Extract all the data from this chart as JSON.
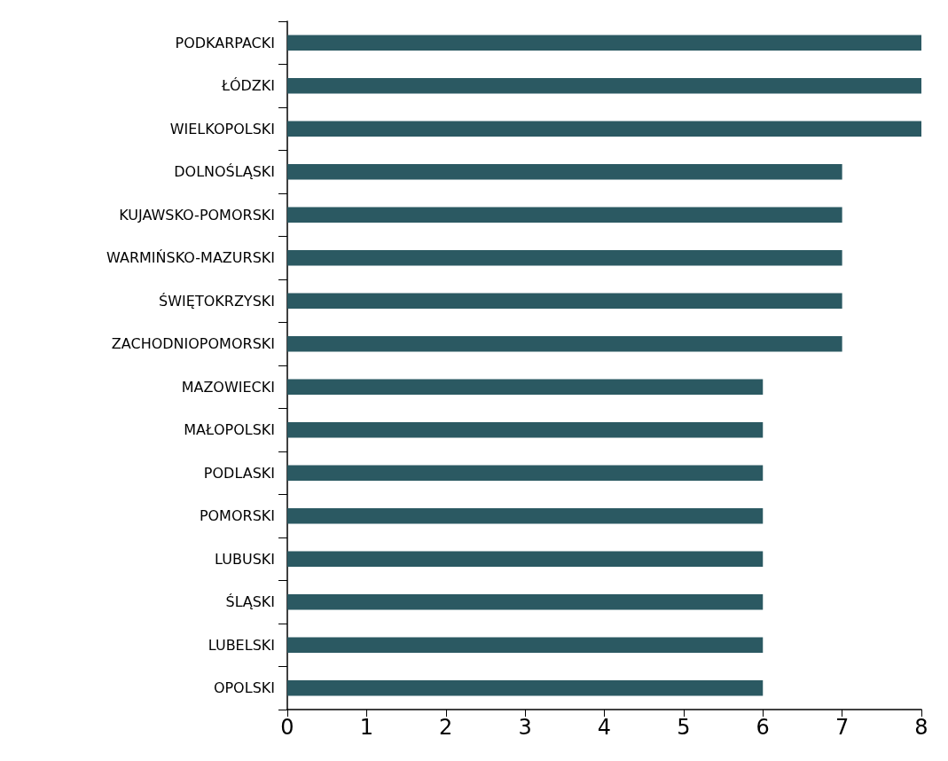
{
  "chart_data": {
    "type": "bar",
    "orientation": "horizontal",
    "categories": [
      "PODKARPACKI",
      "ŁÓDZKI",
      "WIELKOPOLSKI",
      "DOLNOŚLĄSKI",
      "KUJAWSKO-POMORSKI",
      "WARMIŃSKO-MAZURSKI",
      "ŚWIĘTOKRZYSKI",
      "ZACHODNIOPOMORSKI",
      "MAZOWIECKI",
      "MAŁOPOLSKI",
      "PODLASKI",
      "POMORSKI",
      "LUBUSKI",
      "ŚLĄSKI",
      "LUBELSKI",
      "OPOLSKI"
    ],
    "values": [
      8,
      8,
      8,
      7,
      7,
      7,
      7,
      7,
      6,
      6,
      6,
      6,
      6,
      6,
      6,
      6
    ],
    "color": "#2b5962",
    "xlim": [
      0,
      8
    ],
    "xticks": [
      0,
      1,
      2,
      3,
      4,
      5,
      6,
      7,
      8
    ],
    "grid": false
  }
}
